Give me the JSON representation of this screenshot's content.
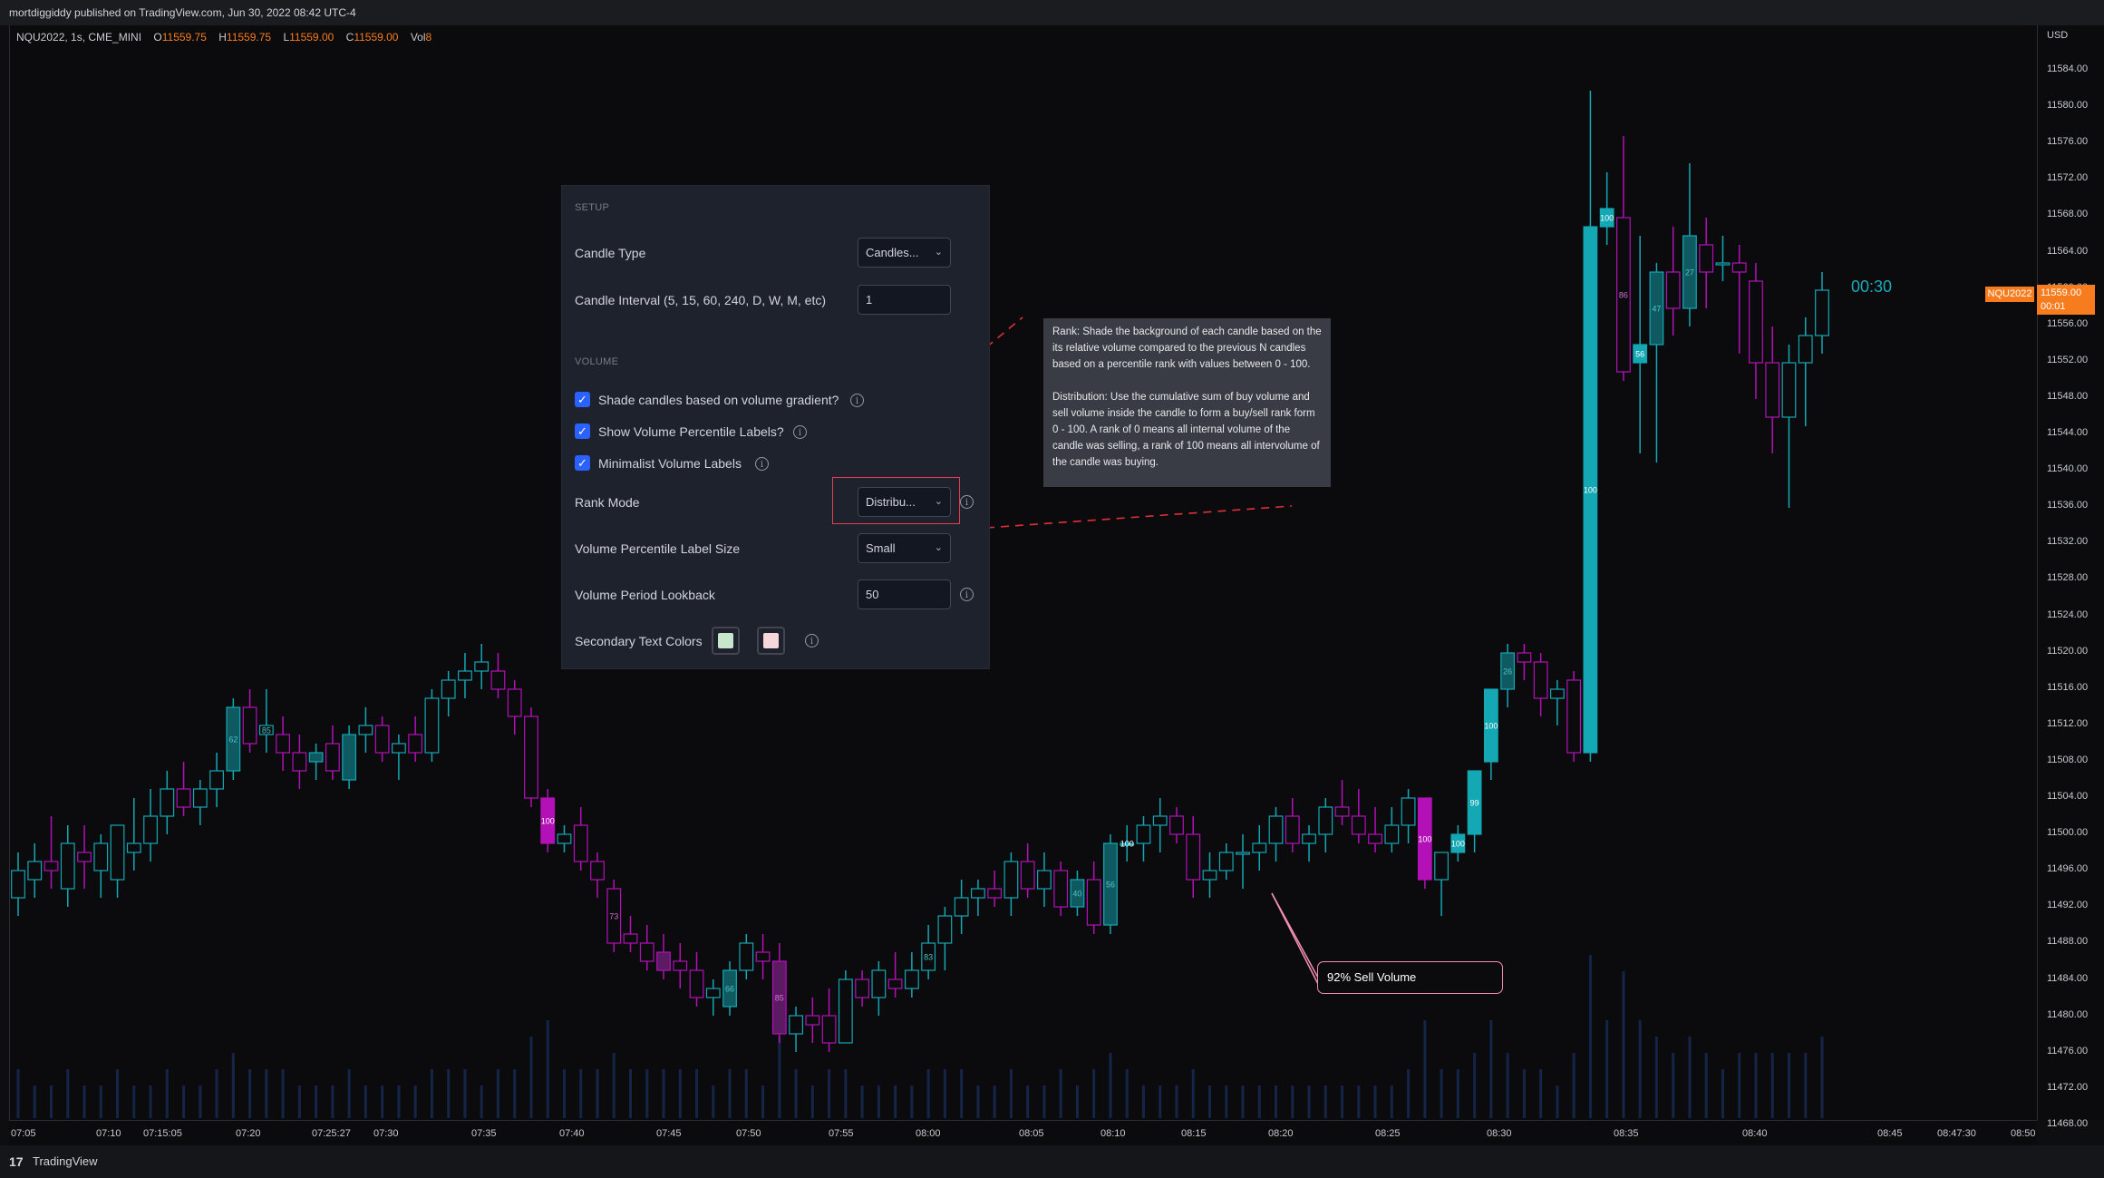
{
  "header": {
    "publish_line": "mortdiggiddy published on TradingView.com, Jun 30, 2022 08:42 UTC-4"
  },
  "legend": {
    "symbol": "NQU2022, 1s, CME_MINI",
    "o_label": "O",
    "o_value": "11559.75",
    "h_label": "H",
    "h_value": "11559.75",
    "l_label": "L",
    "l_value": "11559.00",
    "c_label": "C",
    "c_value": "11559.00",
    "vol_label": "Vol",
    "vol_value": "8"
  },
  "price_axis": {
    "currency": "USD",
    "ticks": [
      "11584.00",
      "11580.00",
      "11576.00",
      "11572.00",
      "11568.00",
      "11564.00",
      "11560.00",
      "11556.00",
      "11552.00",
      "11548.00",
      "11544.00",
      "11540.00",
      "11536.00",
      "11532.00",
      "11528.00",
      "11524.00",
      "11520.00",
      "11516.00",
      "11512.00",
      "11508.00",
      "11504.00",
      "11500.00",
      "11496.00",
      "11492.00",
      "11488.00",
      "11484.00",
      "11480.00",
      "11476.00",
      "11472.00",
      "11468.00"
    ],
    "current_price": "11559.00",
    "current_countdown": "00:01",
    "symbol_badge": "NQU2022",
    "bar_countdown": "00:30"
  },
  "time_axis": {
    "ticks": [
      "07:05",
      "07:10",
      "07:15:05",
      "07:20",
      "07:25:27",
      "07:30",
      "07:35",
      "07:40",
      "07:45",
      "07:50",
      "07:55",
      "08:00",
      "08:05",
      "08:10",
      "08:15",
      "08:20",
      "08:25",
      "08:30",
      "08:35",
      "08:40",
      "08:45",
      "08:47:30",
      "08:50"
    ]
  },
  "settings": {
    "setup_header": "SETUP",
    "candle_type_label": "Candle Type",
    "candle_type_value": "Candles...",
    "candle_interval_label": "Candle Interval (5, 15, 60, 240, D, W, M, etc)",
    "candle_interval_value": "1",
    "volume_header": "VOLUME",
    "shade_label": "Shade candles based on volume gradient?",
    "show_labels_label": "Show Volume Percentile Labels?",
    "minimalist_label": "Minimalist Volume Labels",
    "rank_mode_label": "Rank Mode",
    "rank_mode_value": "Distribu...",
    "label_size_label": "Volume Percentile Label Size",
    "label_size_value": "Small",
    "lookback_label": "Volume Period Lookback",
    "lookback_value": "50",
    "secondary_colors_label": "Secondary Text Colors",
    "swatch1_color": "#c8e6c9",
    "swatch2_color": "#f8d7da"
  },
  "tooltip": {
    "rank_text": "Rank: Shade the background of each candle based on the its relative volume compared to the previous N candles based on a percentile rank with values between 0 - 100.",
    "distribution_text": "Distribution: Use the cumulative sum of buy volume and sell volume inside the candle to form a buy/sell rank form 0 - 100. A rank of 0 means all internal volume of the candle was selling, a rank of 100 means all intervolume of the candle was buying."
  },
  "callout": {
    "text": "92% Sell Volume"
  },
  "footer": {
    "brand": "TradingView",
    "logo": "17"
  },
  "colors": {
    "bull": "#14a7b4",
    "bear": "#b310b8",
    "bull_dim": "#0f5a60",
    "bear_dim": "#5c1a63",
    "accent": "#f77c1e",
    "checkbox": "#2962ff"
  },
  "chart_data": {
    "type": "candlestick",
    "ylim": [
      11468,
      11586
    ],
    "candles": [
      {
        "o": 11492,
        "h": 11497,
        "l": 11490,
        "c": 11495,
        "v": 0.3
      },
      {
        "o": 11494,
        "h": 11498,
        "l": 11492,
        "c": 11496,
        "v": 0.2
      },
      {
        "o": 11496,
        "h": 11501,
        "l": 11493,
        "c": 11495,
        "v": 0.2
      },
      {
        "o": 11493,
        "h": 11500,
        "l": 11491,
        "c": 11498,
        "v": 0.3
      },
      {
        "o": 11497,
        "h": 11500,
        "l": 11493,
        "c": 11496,
        "v": 0.2
      },
      {
        "o": 11495,
        "h": 11499,
        "l": 11492,
        "c": 11498,
        "v": 0.2
      },
      {
        "o": 11494,
        "h": 11500,
        "l": 11492,
        "c": 11500,
        "v": 0.3
      },
      {
        "o": 11497,
        "h": 11503,
        "l": 11495,
        "c": 11498,
        "v": 0.2
      },
      {
        "o": 11498,
        "h": 11504,
        "l": 11496,
        "c": 11501,
        "v": 0.2
      },
      {
        "o": 11501,
        "h": 11506,
        "l": 11499,
        "c": 11504,
        "v": 0.3
      },
      {
        "o": 11504,
        "h": 11507,
        "l": 11501,
        "c": 11502,
        "v": 0.2
      },
      {
        "o": 11502,
        "h": 11505,
        "l": 11500,
        "c": 11504,
        "v": 0.2
      },
      {
        "o": 11504,
        "h": 11508,
        "l": 11502,
        "c": 11506,
        "v": 0.3
      },
      {
        "o": 11506,
        "h": 11514,
        "l": 11505,
        "c": 11513,
        "v": 0.4,
        "label": "62",
        "dim": true
      },
      {
        "o": 11513,
        "h": 11515,
        "l": 11508,
        "c": 11509,
        "v": 0.3
      },
      {
        "o": 11510,
        "h": 11515,
        "l": 11508,
        "c": 11511,
        "v": 0.3,
        "label": "85"
      },
      {
        "o": 11510,
        "h": 11512,
        "l": 11506,
        "c": 11508,
        "v": 0.3
      },
      {
        "o": 11508,
        "h": 11510,
        "l": 11504,
        "c": 11506,
        "v": 0.2
      },
      {
        "o": 11507,
        "h": 11509,
        "l": 11505,
        "c": 11508,
        "v": 0.2,
        "dim": true
      },
      {
        "o": 11509,
        "h": 11511,
        "l": 11505,
        "c": 11506,
        "v": 0.2
      },
      {
        "o": 11505,
        "h": 11511,
        "l": 11504,
        "c": 11510,
        "v": 0.3,
        "dim": true
      },
      {
        "o": 11510,
        "h": 11513,
        "l": 11508,
        "c": 11511,
        "v": 0.2
      },
      {
        "o": 11511,
        "h": 11512,
        "l": 11507,
        "c": 11508,
        "v": 0.2
      },
      {
        "o": 11508,
        "h": 11510,
        "l": 11505,
        "c": 11509,
        "v": 0.2
      },
      {
        "o": 11510,
        "h": 11512,
        "l": 11507,
        "c": 11508,
        "v": 0.2
      },
      {
        "o": 11508,
        "h": 11515,
        "l": 11507,
        "c": 11514,
        "v": 0.3
      },
      {
        "o": 11514,
        "h": 11517,
        "l": 11512,
        "c": 11516,
        "v": 0.3
      },
      {
        "o": 11516,
        "h": 11519,
        "l": 11514,
        "c": 11517,
        "v": 0.3
      },
      {
        "o": 11517,
        "h": 11520,
        "l": 11515,
        "c": 11518,
        "v": 0.2
      },
      {
        "o": 11517,
        "h": 11519,
        "l": 11514,
        "c": 11515,
        "v": 0.3
      },
      {
        "o": 11515,
        "h": 11516,
        "l": 11510,
        "c": 11512,
        "v": 0.3
      },
      {
        "o": 11512,
        "h": 11513,
        "l": 11502,
        "c": 11503,
        "v": 0.5
      },
      {
        "o": 11503,
        "h": 11504,
        "l": 11497,
        "c": 11498,
        "v": 0.6,
        "label": "100",
        "bright": true
      },
      {
        "o": 11498,
        "h": 11500,
        "l": 11497,
        "c": 11499,
        "v": 0.3
      },
      {
        "o": 11500,
        "h": 11502,
        "l": 11495,
        "c": 11496,
        "v": 0.3
      },
      {
        "o": 11496,
        "h": 11497,
        "l": 11492,
        "c": 11494,
        "v": 0.3
      },
      {
        "o": 11493,
        "h": 11494,
        "l": 11486,
        "c": 11487,
        "v": 0.4,
        "label": "73"
      },
      {
        "o": 11488,
        "h": 11490,
        "l": 11486,
        "c": 11487,
        "v": 0.3
      },
      {
        "o": 11487,
        "h": 11489,
        "l": 11484,
        "c": 11485,
        "v": 0.3
      },
      {
        "o": 11486,
        "h": 11488,
        "l": 11483,
        "c": 11484,
        "v": 0.3,
        "dim": true
      },
      {
        "o": 11485,
        "h": 11487,
        "l": 11482,
        "c": 11484,
        "v": 0.3
      },
      {
        "o": 11484,
        "h": 11486,
        "l": 11480,
        "c": 11481,
        "v": 0.3
      },
      {
        "o": 11481,
        "h": 11483,
        "l": 11479,
        "c": 11482,
        "v": 0.2
      },
      {
        "o": 11480,
        "h": 11485,
        "l": 11479,
        "c": 11484,
        "v": 0.3,
        "label": "66",
        "dim": true
      },
      {
        "o": 11484,
        "h": 11488,
        "l": 11483,
        "c": 11487,
        "v": 0.3
      },
      {
        "o": 11486,
        "h": 11488,
        "l": 11483,
        "c": 11485,
        "v": 0.2
      },
      {
        "o": 11485,
        "h": 11487,
        "l": 11476,
        "c": 11477,
        "v": 0.5,
        "label": "85",
        "dim": true
      },
      {
        "o": 11477,
        "h": 11480,
        "l": 11475,
        "c": 11479,
        "v": 0.3
      },
      {
        "o": 11479,
        "h": 11481,
        "l": 11476,
        "c": 11478,
        "v": 0.2
      },
      {
        "o": 11479,
        "h": 11482,
        "l": 11475,
        "c": 11476,
        "v": 0.3
      },
      {
        "o": 11476,
        "h": 11484,
        "l": 11476,
        "c": 11483,
        "v": 0.3
      },
      {
        "o": 11483,
        "h": 11484,
        "l": 11480,
        "c": 11481,
        "v": 0.2
      },
      {
        "o": 11481,
        "h": 11485,
        "l": 11479,
        "c": 11484,
        "v": 0.2
      },
      {
        "o": 11483,
        "h": 11486,
        "l": 11481,
        "c": 11482,
        "v": 0.2
      },
      {
        "o": 11482,
        "h": 11486,
        "l": 11481,
        "c": 11484,
        "v": 0.2
      },
      {
        "o": 11484,
        "h": 11489,
        "l": 11483,
        "c": 11487,
        "v": 0.3,
        "label": "83"
      },
      {
        "o": 11487,
        "h": 11491,
        "l": 11484,
        "c": 11490,
        "v": 0.3
      },
      {
        "o": 11490,
        "h": 11494,
        "l": 11488,
        "c": 11492,
        "v": 0.3
      },
      {
        "o": 11492,
        "h": 11494,
        "l": 11490,
        "c": 11493,
        "v": 0.2
      },
      {
        "o": 11493,
        "h": 11495,
        "l": 11491,
        "c": 11492,
        "v": 0.2
      },
      {
        "o": 11492,
        "h": 11497,
        "l": 11490,
        "c": 11496,
        "v": 0.3
      },
      {
        "o": 11496,
        "h": 11498,
        "l": 11492,
        "c": 11493,
        "v": 0.2
      },
      {
        "o": 11493,
        "h": 11497,
        "l": 11491,
        "c": 11495,
        "v": 0.2
      },
      {
        "o": 11495,
        "h": 11496,
        "l": 11490,
        "c": 11491,
        "v": 0.3
      },
      {
        "o": 11491,
        "h": 11495,
        "l": 11490,
        "c": 11494,
        "v": 0.2,
        "label": "40",
        "dim": true
      },
      {
        "o": 11494,
        "h": 11496,
        "l": 11488,
        "c": 11489,
        "v": 0.3
      },
      {
        "o": 11489,
        "h": 11499,
        "l": 11488,
        "c": 11498,
        "v": 0.4,
        "label": "56",
        "dim": true
      },
      {
        "o": 11498,
        "h": 11500,
        "l": 11496,
        "c": 11498,
        "v": 0.3,
        "label": "100",
        "bright": true
      },
      {
        "o": 11498,
        "h": 11501,
        "l": 11496,
        "c": 11500,
        "v": 0.2
      },
      {
        "o": 11500,
        "h": 11503,
        "l": 11497,
        "c": 11501,
        "v": 0.2
      },
      {
        "o": 11501,
        "h": 11502,
        "l": 11498,
        "c": 11499,
        "v": 0.2
      },
      {
        "o": 11499,
        "h": 11501,
        "l": 11492,
        "c": 11494,
        "v": 0.3
      },
      {
        "o": 11494,
        "h": 11497,
        "l": 11492,
        "c": 11495,
        "v": 0.2
      },
      {
        "o": 11495,
        "h": 11498,
        "l": 11494,
        "c": 11497,
        "v": 0.2
      },
      {
        "o": 11497,
        "h": 11499,
        "l": 11493,
        "c": 11497,
        "v": 0.2
      },
      {
        "o": 11497,
        "h": 11500,
        "l": 11495,
        "c": 11498,
        "v": 0.2
      },
      {
        "o": 11498,
        "h": 11502,
        "l": 11496,
        "c": 11501,
        "v": 0.2
      },
      {
        "o": 11501,
        "h": 11503,
        "l": 11497,
        "c": 11498,
        "v": 0.2
      },
      {
        "o": 11498,
        "h": 11500,
        "l": 11496,
        "c": 11499,
        "v": 0.2
      },
      {
        "o": 11499,
        "h": 11503,
        "l": 11497,
        "c": 11502,
        "v": 0.2
      },
      {
        "o": 11502,
        "h": 11505,
        "l": 11500,
        "c": 11501,
        "v": 0.2
      },
      {
        "o": 11501,
        "h": 11504,
        "l": 11498,
        "c": 11499,
        "v": 0.2
      },
      {
        "o": 11499,
        "h": 11502,
        "l": 11497,
        "c": 11498,
        "v": 0.2
      },
      {
        "o": 11498,
        "h": 11502,
        "l": 11497,
        "c": 11500,
        "v": 0.2
      },
      {
        "o": 11500,
        "h": 11504,
        "l": 11498,
        "c": 11503,
        "v": 0.3
      },
      {
        "o": 11503,
        "h": 11503,
        "l": 11493,
        "c": 11494,
        "v": 0.6,
        "label": "100",
        "bright": true
      },
      {
        "o": 11494,
        "h": 11497,
        "l": 11490,
        "c": 11497,
        "v": 0.3
      },
      {
        "o": 11497,
        "h": 11500,
        "l": 11496,
        "c": 11499,
        "v": 0.3,
        "label": "100",
        "bright": true
      },
      {
        "o": 11499,
        "h": 11506,
        "l": 11497,
        "c": 11506,
        "v": 0.4,
        "label": "99",
        "bright": true
      },
      {
        "o": 11507,
        "h": 11515,
        "l": 11505,
        "c": 11515,
        "v": 0.6,
        "label": "100",
        "bright": true
      },
      {
        "o": 11515,
        "h": 11520,
        "l": 11513,
        "c": 11519,
        "v": 0.4,
        "label": "26",
        "dim": true
      },
      {
        "o": 11519,
        "h": 11520,
        "l": 11516,
        "c": 11518,
        "v": 0.3
      },
      {
        "o": 11518,
        "h": 11519,
        "l": 11512,
        "c": 11514,
        "v": 0.3
      },
      {
        "o": 11514,
        "h": 11516,
        "l": 11511,
        "c": 11515,
        "v": 0.2
      },
      {
        "o": 11516,
        "h": 11517,
        "l": 11507,
        "c": 11508,
        "v": 0.4
      },
      {
        "o": 11508,
        "h": 11581,
        "l": 11507,
        "c": 11566,
        "v": 1.0,
        "label": "100",
        "bright": true
      },
      {
        "o": 11566,
        "h": 11572,
        "l": 11564,
        "c": 11568,
        "v": 0.6,
        "label": "100",
        "bright": true
      },
      {
        "o": 11567,
        "h": 11576,
        "l": 11549,
        "c": 11550,
        "v": 0.9,
        "label": "86"
      },
      {
        "o": 11551,
        "h": 11565,
        "l": 11541,
        "c": 11553,
        "v": 0.6,
        "label": "56",
        "bright": true
      },
      {
        "o": 11553,
        "h": 11562,
        "l": 11540,
        "c": 11561,
        "v": 0.5,
        "label": "47",
        "dim": true
      },
      {
        "o": 11561,
        "h": 11566,
        "l": 11554,
        "c": 11557,
        "v": 0.4
      },
      {
        "o": 11557,
        "h": 11573,
        "l": 11555,
        "c": 11565,
        "v": 0.5,
        "label": "27",
        "dim": true
      },
      {
        "o": 11564,
        "h": 11567,
        "l": 11557,
        "c": 11561,
        "v": 0.4
      },
      {
        "o": 11562,
        "h": 11565,
        "l": 11560,
        "c": 11562,
        "v": 0.3
      },
      {
        "o": 11562,
        "h": 11564,
        "l": 11552,
        "c": 11561,
        "v": 0.4
      },
      {
        "o": 11560,
        "h": 11562,
        "l": 11547,
        "c": 11551,
        "v": 0.4
      },
      {
        "o": 11551,
        "h": 11555,
        "l": 11541,
        "c": 11545,
        "v": 0.4
      },
      {
        "o": 11545,
        "h": 11553,
        "l": 11535,
        "c": 11551,
        "v": 0.4
      },
      {
        "o": 11551,
        "h": 11556,
        "l": 11544,
        "c": 11554,
        "v": 0.4
      },
      {
        "o": 11554,
        "h": 11561,
        "l": 11552,
        "c": 11559,
        "v": 0.5
      }
    ]
  }
}
